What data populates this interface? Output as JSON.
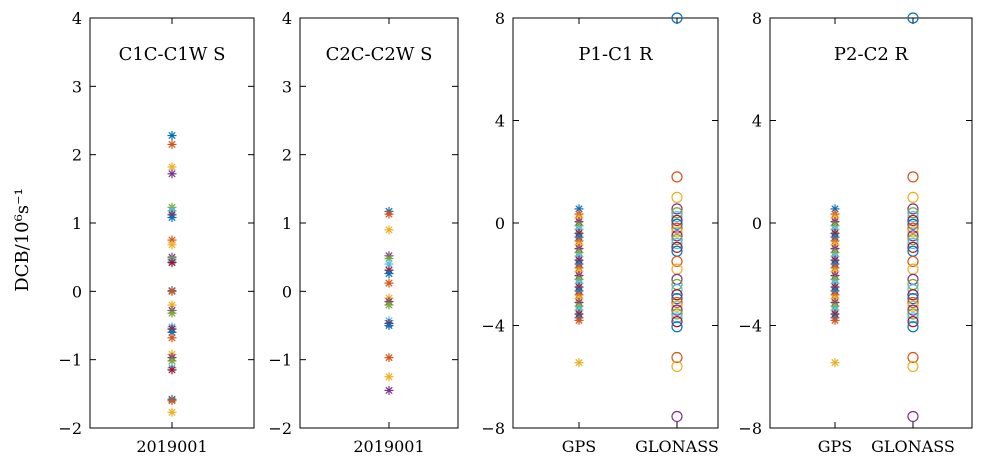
{
  "ylabel": "DCB/10⁶s⁻¹",
  "chart_data": [
    {
      "type": "scatter",
      "title": "C1C-C1W S",
      "categories": [
        "2019001"
      ],
      "ylim": [
        -2,
        4
      ],
      "yticks": [
        -2,
        -1,
        0,
        1,
        2,
        3,
        4
      ],
      "marker": "asterisk",
      "series": [
        {
          "category": "2019001",
          "values": [
            2.28,
            2.15,
            1.82,
            1.72,
            1.23,
            1.18,
            1.12,
            1.08,
            0.75,
            0.68,
            0.5,
            0.47,
            0.44,
            0.42,
            0.01,
            0.0,
            -0.2,
            -0.28,
            -0.32,
            -0.52,
            -0.55,
            -0.6,
            -0.68,
            -0.92,
            -0.97,
            -1.02,
            -1.12,
            -1.15,
            -1.58,
            -1.6,
            -1.77
          ]
        }
      ]
    },
    {
      "type": "scatter",
      "title": "C2C-C2W S",
      "categories": [
        "2019001"
      ],
      "ylim": [
        -2,
        4
      ],
      "yticks": [
        -2,
        -1,
        0,
        1,
        2,
        3,
        4
      ],
      "marker": "asterisk",
      "series": [
        {
          "category": "2019001",
          "values": [
            1.17,
            1.13,
            0.9,
            0.52,
            0.48,
            0.4,
            0.31,
            0.26,
            0.12,
            -0.1,
            -0.15,
            -0.2,
            -0.43,
            -0.47,
            -0.5,
            -0.97,
            -1.25,
            -1.45
          ]
        }
      ]
    },
    {
      "type": "scatter",
      "title": "P1-C1 R",
      "categories": [
        "GPS",
        "GLONASS"
      ],
      "ylim": [
        -8,
        8
      ],
      "yticks": [
        -8,
        -4,
        0,
        4,
        8
      ],
      "series": [
        {
          "category": "GPS",
          "marker": "asterisk",
          "values": [
            0.55,
            0.35,
            0.2,
            0.05,
            -0.1,
            -0.25,
            -0.4,
            -0.55,
            -0.7,
            -0.85,
            -1.0,
            -1.15,
            -1.3,
            -1.45,
            -1.6,
            -1.75,
            -1.9,
            -2.05,
            -2.2,
            -2.35,
            -2.5,
            -2.65,
            -2.8,
            -2.95,
            -3.1,
            -3.25,
            -3.4,
            -3.55,
            -3.7,
            -3.8,
            -5.45
          ]
        },
        {
          "category": "GLONASS",
          "marker": "circle",
          "values": [
            8.0,
            1.8,
            1.0,
            0.55,
            0.4,
            0.25,
            0.1,
            -0.05,
            -0.2,
            -0.35,
            -0.5,
            -0.65,
            -0.8,
            -0.95,
            -1.1,
            -1.5,
            -1.8,
            -2.2,
            -2.4,
            -2.6,
            -2.8,
            -2.95,
            -3.1,
            -3.25,
            -3.4,
            -3.55,
            -3.7,
            -3.85,
            -4.05,
            -5.25,
            -5.6,
            -7.55
          ]
        }
      ]
    },
    {
      "type": "scatter",
      "title": "P2-C2 R",
      "categories": [
        "GPS",
        "GLONASS"
      ],
      "ylim": [
        -8,
        8
      ],
      "yticks": [
        -8,
        -4,
        0,
        4,
        8
      ],
      "series": [
        {
          "category": "GPS",
          "marker": "asterisk",
          "values": [
            0.55,
            0.35,
            0.2,
            0.05,
            -0.1,
            -0.25,
            -0.4,
            -0.55,
            -0.7,
            -0.85,
            -1.0,
            -1.15,
            -1.3,
            -1.45,
            -1.6,
            -1.75,
            -1.9,
            -2.05,
            -2.2,
            -2.35,
            -2.5,
            -2.65,
            -2.8,
            -2.95,
            -3.1,
            -3.25,
            -3.4,
            -3.55,
            -3.7,
            -3.8,
            -5.45
          ]
        },
        {
          "category": "GLONASS",
          "marker": "circle",
          "values": [
            8.0,
            1.8,
            1.0,
            0.55,
            0.4,
            0.25,
            0.1,
            -0.05,
            -0.2,
            -0.35,
            -0.5,
            -0.65,
            -0.8,
            -0.95,
            -1.1,
            -1.5,
            -1.8,
            -2.2,
            -2.4,
            -2.6,
            -2.8,
            -2.95,
            -3.1,
            -3.25,
            -3.4,
            -3.55,
            -3.7,
            -3.85,
            -4.05,
            -5.25,
            -5.6,
            -7.55
          ]
        }
      ]
    }
  ],
  "palette": [
    "#0072BD",
    "#D95319",
    "#EDB120",
    "#7E2F8E",
    "#77AC30",
    "#4DBEEE",
    "#A2142F"
  ]
}
